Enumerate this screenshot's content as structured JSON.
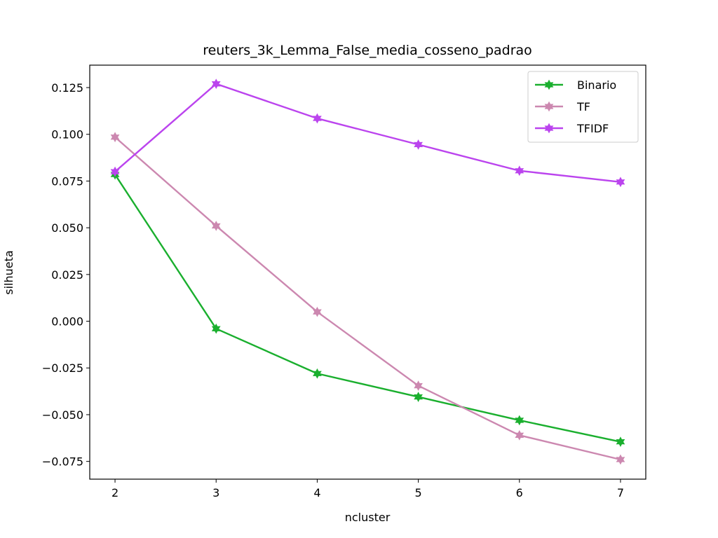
{
  "chart_data": {
    "type": "line",
    "title": "reuters_3k_Lemma_False_media_cosseno_padrao",
    "xlabel": "ncluster",
    "ylabel": "silhueta",
    "x": [
      2,
      3,
      4,
      5,
      6,
      7
    ],
    "xlim": [
      1.75,
      7.25
    ],
    "ylim": [
      -0.0845,
      0.137
    ],
    "x_ticks": [
      2,
      3,
      4,
      5,
      6,
      7
    ],
    "y_ticks": [
      -0.075,
      -0.05,
      -0.025,
      0.0,
      0.025,
      0.05,
      0.075,
      0.1,
      0.125
    ],
    "y_tick_labels": [
      "−0.075",
      "−0.050",
      "−0.025",
      "0.000",
      "0.025",
      "0.050",
      "0.075",
      "0.100",
      "0.125"
    ],
    "legend_position": "top-right",
    "grid": false,
    "series": [
      {
        "name": "Binario",
        "color": "#1aaf2e",
        "marker": "star",
        "values": [
          0.0785,
          -0.004,
          -0.028,
          -0.0405,
          -0.053,
          -0.0645
        ]
      },
      {
        "name": "TF",
        "color": "#cc88b0",
        "marker": "star",
        "values": [
          0.0985,
          0.051,
          0.005,
          -0.0345,
          -0.061,
          -0.074
        ]
      },
      {
        "name": "TFIDF",
        "color": "#bb44ee",
        "marker": "star",
        "values": [
          0.08,
          0.127,
          0.1085,
          0.0945,
          0.0805,
          0.0745
        ]
      }
    ]
  }
}
